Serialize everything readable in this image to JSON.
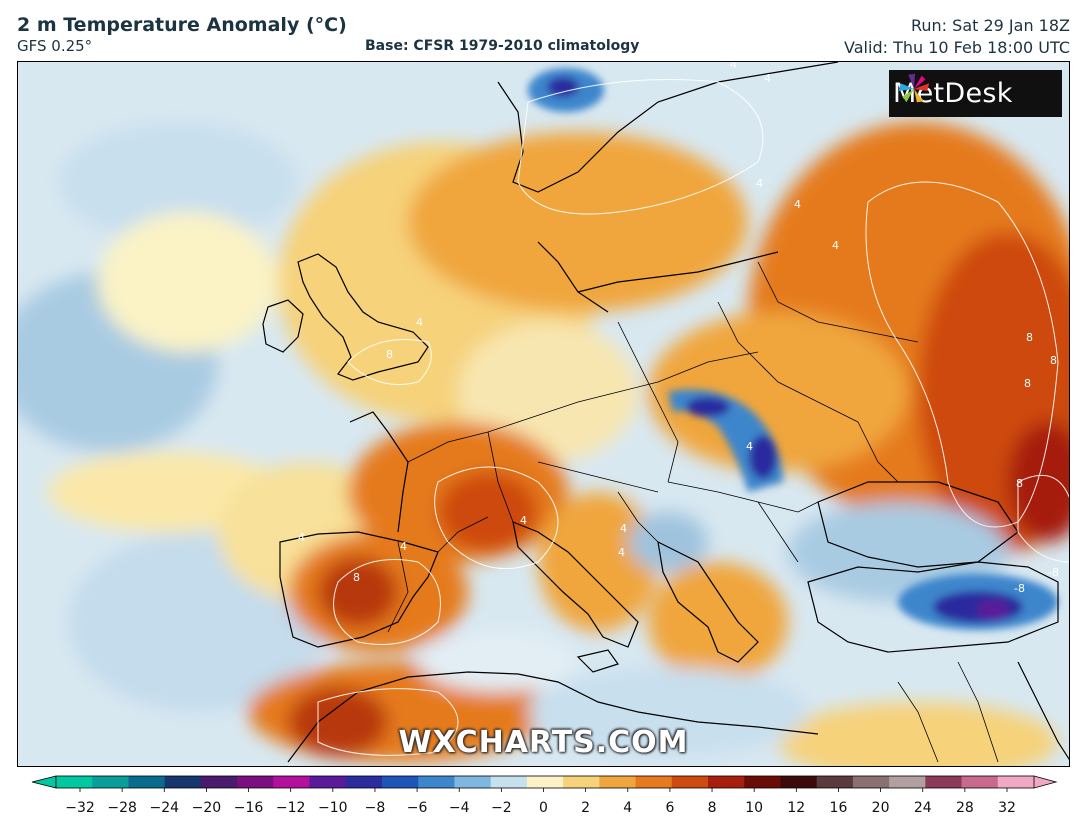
{
  "header": {
    "title": "2 m Temperature Anomaly (°C)",
    "model": "GFS 0.25°",
    "base": "Base: CFSR 1979-2010 climatology",
    "run": "Run: Sat 29 Jan 18Z",
    "valid": "Valid: Thu 10 Feb 18:00 UTC"
  },
  "logo": {
    "text": "MetDesk"
  },
  "watermark": "WXCHARTS.COM",
  "colorbar": {
    "ticks": [
      "−32",
      "−28",
      "−24",
      "−20",
      "−16",
      "−12",
      "−10",
      "−8",
      "−6",
      "−4",
      "−2",
      "0",
      "2",
      "4",
      "6",
      "8",
      "10",
      "12",
      "16",
      "20",
      "24",
      "28",
      "32"
    ],
    "colors": [
      "#00c8a0",
      "#0a9e9a",
      "#0b6b8c",
      "#17356e",
      "#4a1a6e",
      "#7a0f7d",
      "#b3109e",
      "#5a1a9a",
      "#2b2c9e",
      "#1f55b8",
      "#3c86cc",
      "#7eb8e0",
      "#c7e0ee",
      "#fbf3c6",
      "#f6d27a",
      "#f0a63e",
      "#e57a1e",
      "#cd4a10",
      "#a51f0c",
      "#6a0c08",
      "#3c0a08",
      "#5a3a3a",
      "#8a7070",
      "#b0a0a0",
      "#8c3a5a",
      "#c86a8e",
      "#f0a8c4"
    ]
  },
  "contour_labels": [
    {
      "value": "4"
    },
    {
      "value": "4"
    },
    {
      "value": "4"
    },
    {
      "value": "4"
    },
    {
      "value": "4"
    },
    {
      "value": "8"
    },
    {
      "value": "4"
    },
    {
      "value": "8"
    },
    {
      "value": "8"
    },
    {
      "value": "8"
    },
    {
      "value": "8"
    },
    {
      "value": "4"
    },
    {
      "value": "4"
    },
    {
      "value": "4"
    },
    {
      "value": "-8"
    },
    {
      "value": "4"
    },
    {
      "value": "4"
    },
    {
      "value": "-8"
    },
    {
      "value": "8"
    },
    {
      "value": "4"
    }
  ]
}
